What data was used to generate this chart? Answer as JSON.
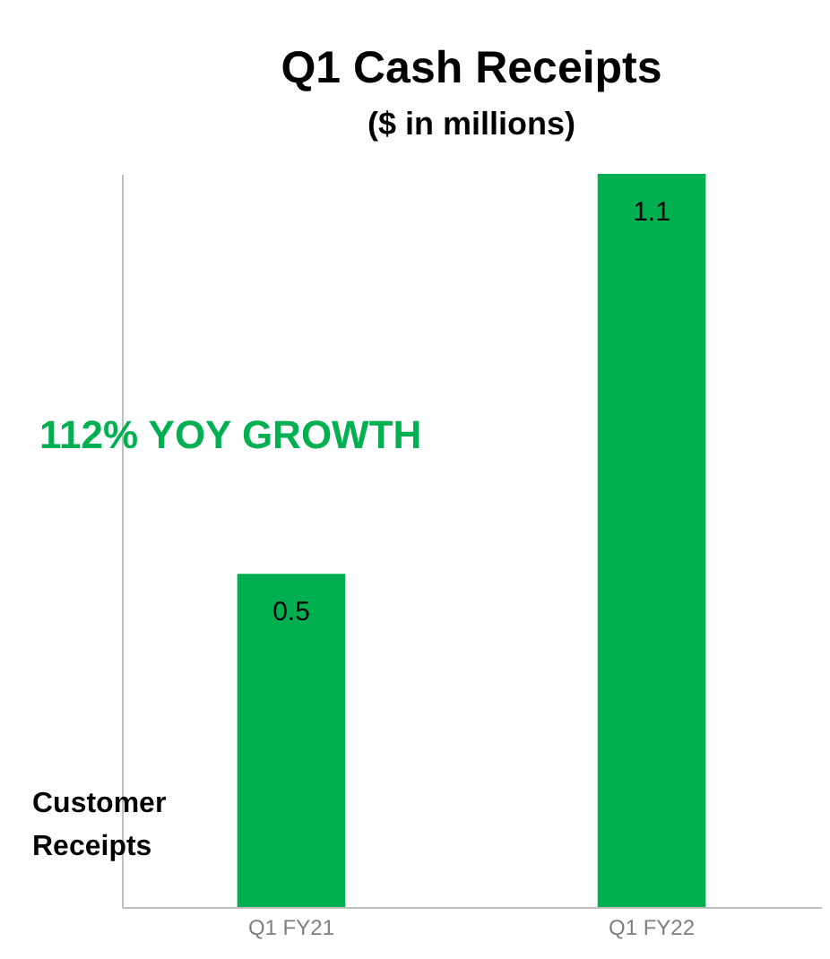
{
  "chart_data": {
    "type": "bar",
    "title": "Q1 Cash Receipts",
    "subtitle": "($ in millions)",
    "ylabel": "Customer Receipts",
    "annotations": [
      "112% YOY GROWTH"
    ],
    "categories": [
      "Q1 FY21",
      "Q1 FY22"
    ],
    "values": [
      0.5,
      1.1
    ],
    "color": "#00b050",
    "data_labels": true
  }
}
